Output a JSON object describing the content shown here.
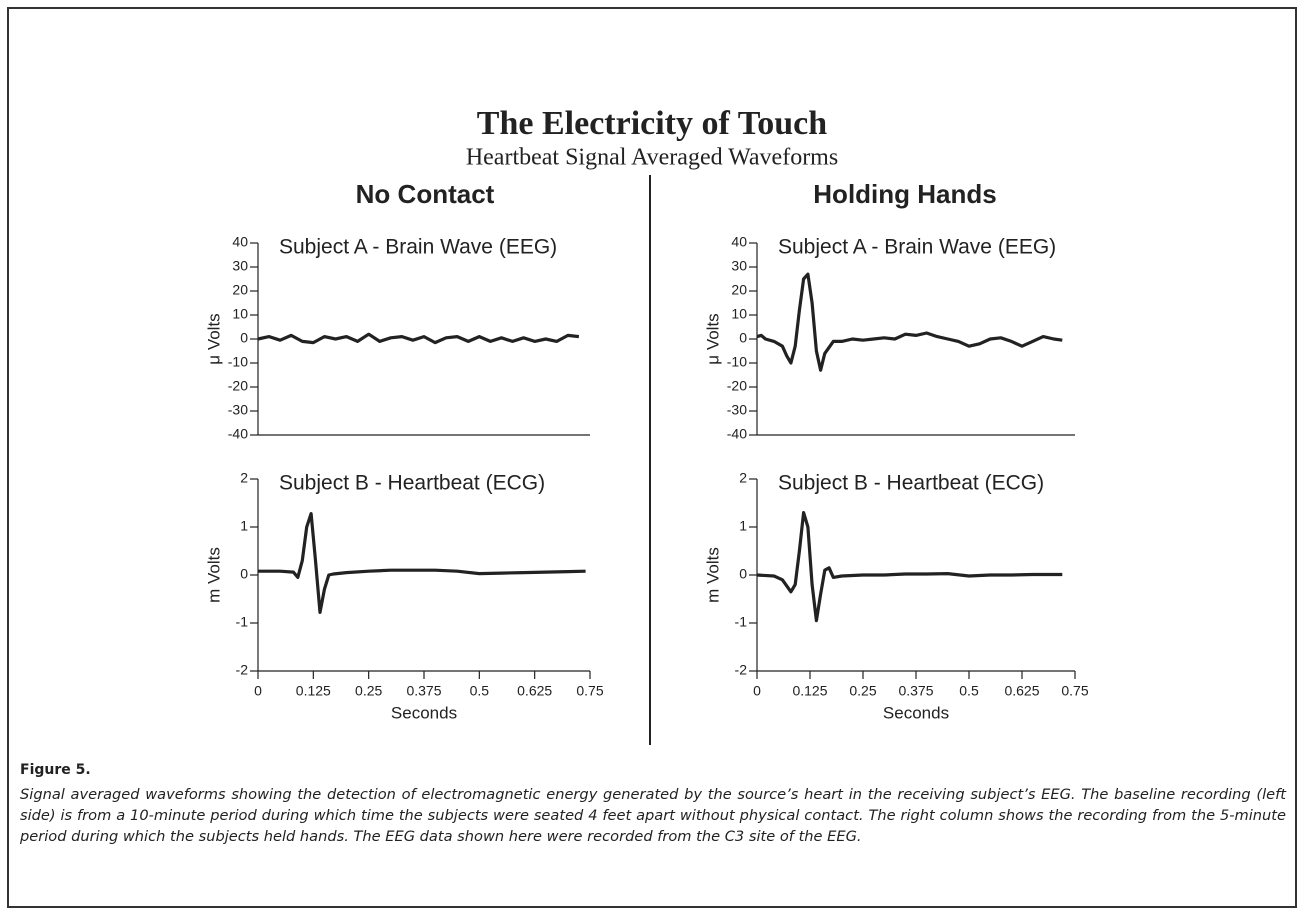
{
  "title": "The Electricity of Touch",
  "subtitle": "Heartbeat Signal Averaged Waveforms",
  "columns": [
    "No Contact",
    "Holding Hands"
  ],
  "caption_label": "Figure 5.",
  "caption": "Signal averaged waveforms showing the detection of electromagnetic energy generated by the source’s heart in the receiving subject’s EEG. The baseline recording (left side) is from a 10-minute period during which time the subjects were seated 4 feet apart without physical contact. The right column shows the recording from the 5-minute period during which the subjects held hands. The EEG data shown here were recorded from the C3 site of the EEG.",
  "chart_data": [
    {
      "type": "line",
      "title": "Subject A - Brain Wave (EEG)",
      "ylabel": "μ Volts",
      "color": "#222222",
      "x": [
        0,
        0.025,
        0.05,
        0.075,
        0.1,
        0.125,
        0.15,
        0.175,
        0.2,
        0.225,
        0.25,
        0.275,
        0.3,
        0.325,
        0.35,
        0.375,
        0.4,
        0.425,
        0.45,
        0.475,
        0.5,
        0.525,
        0.55,
        0.575,
        0.6,
        0.625,
        0.65,
        0.675,
        0.7,
        0.725
      ],
      "values": [
        0,
        1,
        -0.5,
        1.5,
        -1,
        -1.5,
        1,
        0,
        1,
        -1,
        2,
        -1,
        0.5,
        1,
        -0.5,
        1,
        -1.5,
        0.5,
        1,
        -1,
        1,
        -1,
        0.5,
        -1,
        0.5,
        -1,
        0,
        -1,
        1.5,
        1
      ],
      "xlim": [
        0,
        0.75
      ],
      "ylim": [
        -40,
        40
      ],
      "yticks": [
        -40,
        -30,
        -20,
        -10,
        0,
        10,
        20,
        30,
        40
      ]
    },
    {
      "type": "line",
      "title": "Subject B - Heartbeat (ECG)",
      "ylabel": "m Volts",
      "xlabel": "Seconds",
      "color": "#222222",
      "x": [
        0,
        0.05,
        0.08,
        0.09,
        0.1,
        0.11,
        0.12,
        0.13,
        0.14,
        0.15,
        0.16,
        0.17,
        0.2,
        0.25,
        0.3,
        0.35,
        0.4,
        0.45,
        0.5,
        0.55,
        0.6,
        0.65,
        0.7,
        0.74
      ],
      "values": [
        0.08,
        0.08,
        0.06,
        -0.05,
        0.3,
        1,
        1.28,
        0.3,
        -0.78,
        -0.3,
        0,
        0.02,
        0.05,
        0.08,
        0.1,
        0.1,
        0.1,
        0.08,
        0.03,
        0.04,
        0.05,
        0.06,
        0.07,
        0.08
      ],
      "xlim": [
        0,
        0.75
      ],
      "xticks": [
        0,
        0.125,
        0.25,
        0.375,
        0.5,
        0.625,
        0.75
      ],
      "ylim": [
        -2,
        2
      ],
      "yticks": [
        -2,
        -1,
        0,
        1,
        2
      ]
    },
    {
      "type": "line",
      "title": "Subject A - Brain Wave (EEG)",
      "ylabel": "μ Volts",
      "color": "#222222",
      "x": [
        0,
        0.01,
        0.02,
        0.04,
        0.06,
        0.07,
        0.08,
        0.09,
        0.1,
        0.11,
        0.12,
        0.13,
        0.14,
        0.15,
        0.16,
        0.18,
        0.2,
        0.225,
        0.25,
        0.275,
        0.3,
        0.325,
        0.35,
        0.375,
        0.4,
        0.425,
        0.45,
        0.475,
        0.5,
        0.525,
        0.55,
        0.575,
        0.6,
        0.625,
        0.65,
        0.675,
        0.7,
        0.72
      ],
      "values": [
        1,
        1.5,
        0,
        -1,
        -3,
        -7,
        -10,
        -3,
        12,
        25,
        27,
        15,
        -5,
        -13,
        -6,
        -1,
        -1,
        0,
        -0.5,
        0,
        0.5,
        0,
        2,
        1.5,
        2.5,
        1,
        0,
        -1,
        -3,
        -2,
        0,
        0.5,
        -1,
        -3,
        -1,
        1,
        0,
        -0.5
      ],
      "xlim": [
        0,
        0.75
      ],
      "ylim": [
        -40,
        40
      ],
      "yticks": [
        -40,
        -30,
        -20,
        -10,
        0,
        10,
        20,
        30,
        40
      ]
    },
    {
      "type": "line",
      "title": "Subject B - Heartbeat (ECG)",
      "ylabel": "m Volts",
      "xlabel": "Seconds",
      "color": "#222222",
      "x": [
        0,
        0.04,
        0.06,
        0.08,
        0.09,
        0.1,
        0.11,
        0.12,
        0.13,
        0.14,
        0.15,
        0.16,
        0.17,
        0.18,
        0.2,
        0.25,
        0.3,
        0.35,
        0.4,
        0.45,
        0.5,
        0.55,
        0.6,
        0.65,
        0.7,
        0.72
      ],
      "values": [
        0,
        -0.02,
        -0.1,
        -0.35,
        -0.2,
        0.5,
        1.3,
        1,
        -0.2,
        -0.95,
        -0.4,
        0.1,
        0.15,
        -0.05,
        -0.02,
        0,
        0,
        0.02,
        0.02,
        0.03,
        -0.02,
        0,
        0,
        0.01,
        0.01,
        0.01
      ],
      "xlim": [
        0,
        0.75
      ],
      "xticks": [
        0,
        0.125,
        0.25,
        0.375,
        0.5,
        0.625,
        0.75
      ],
      "ylim": [
        -2,
        2
      ],
      "yticks": [
        -2,
        -1,
        0,
        1,
        2
      ]
    }
  ]
}
